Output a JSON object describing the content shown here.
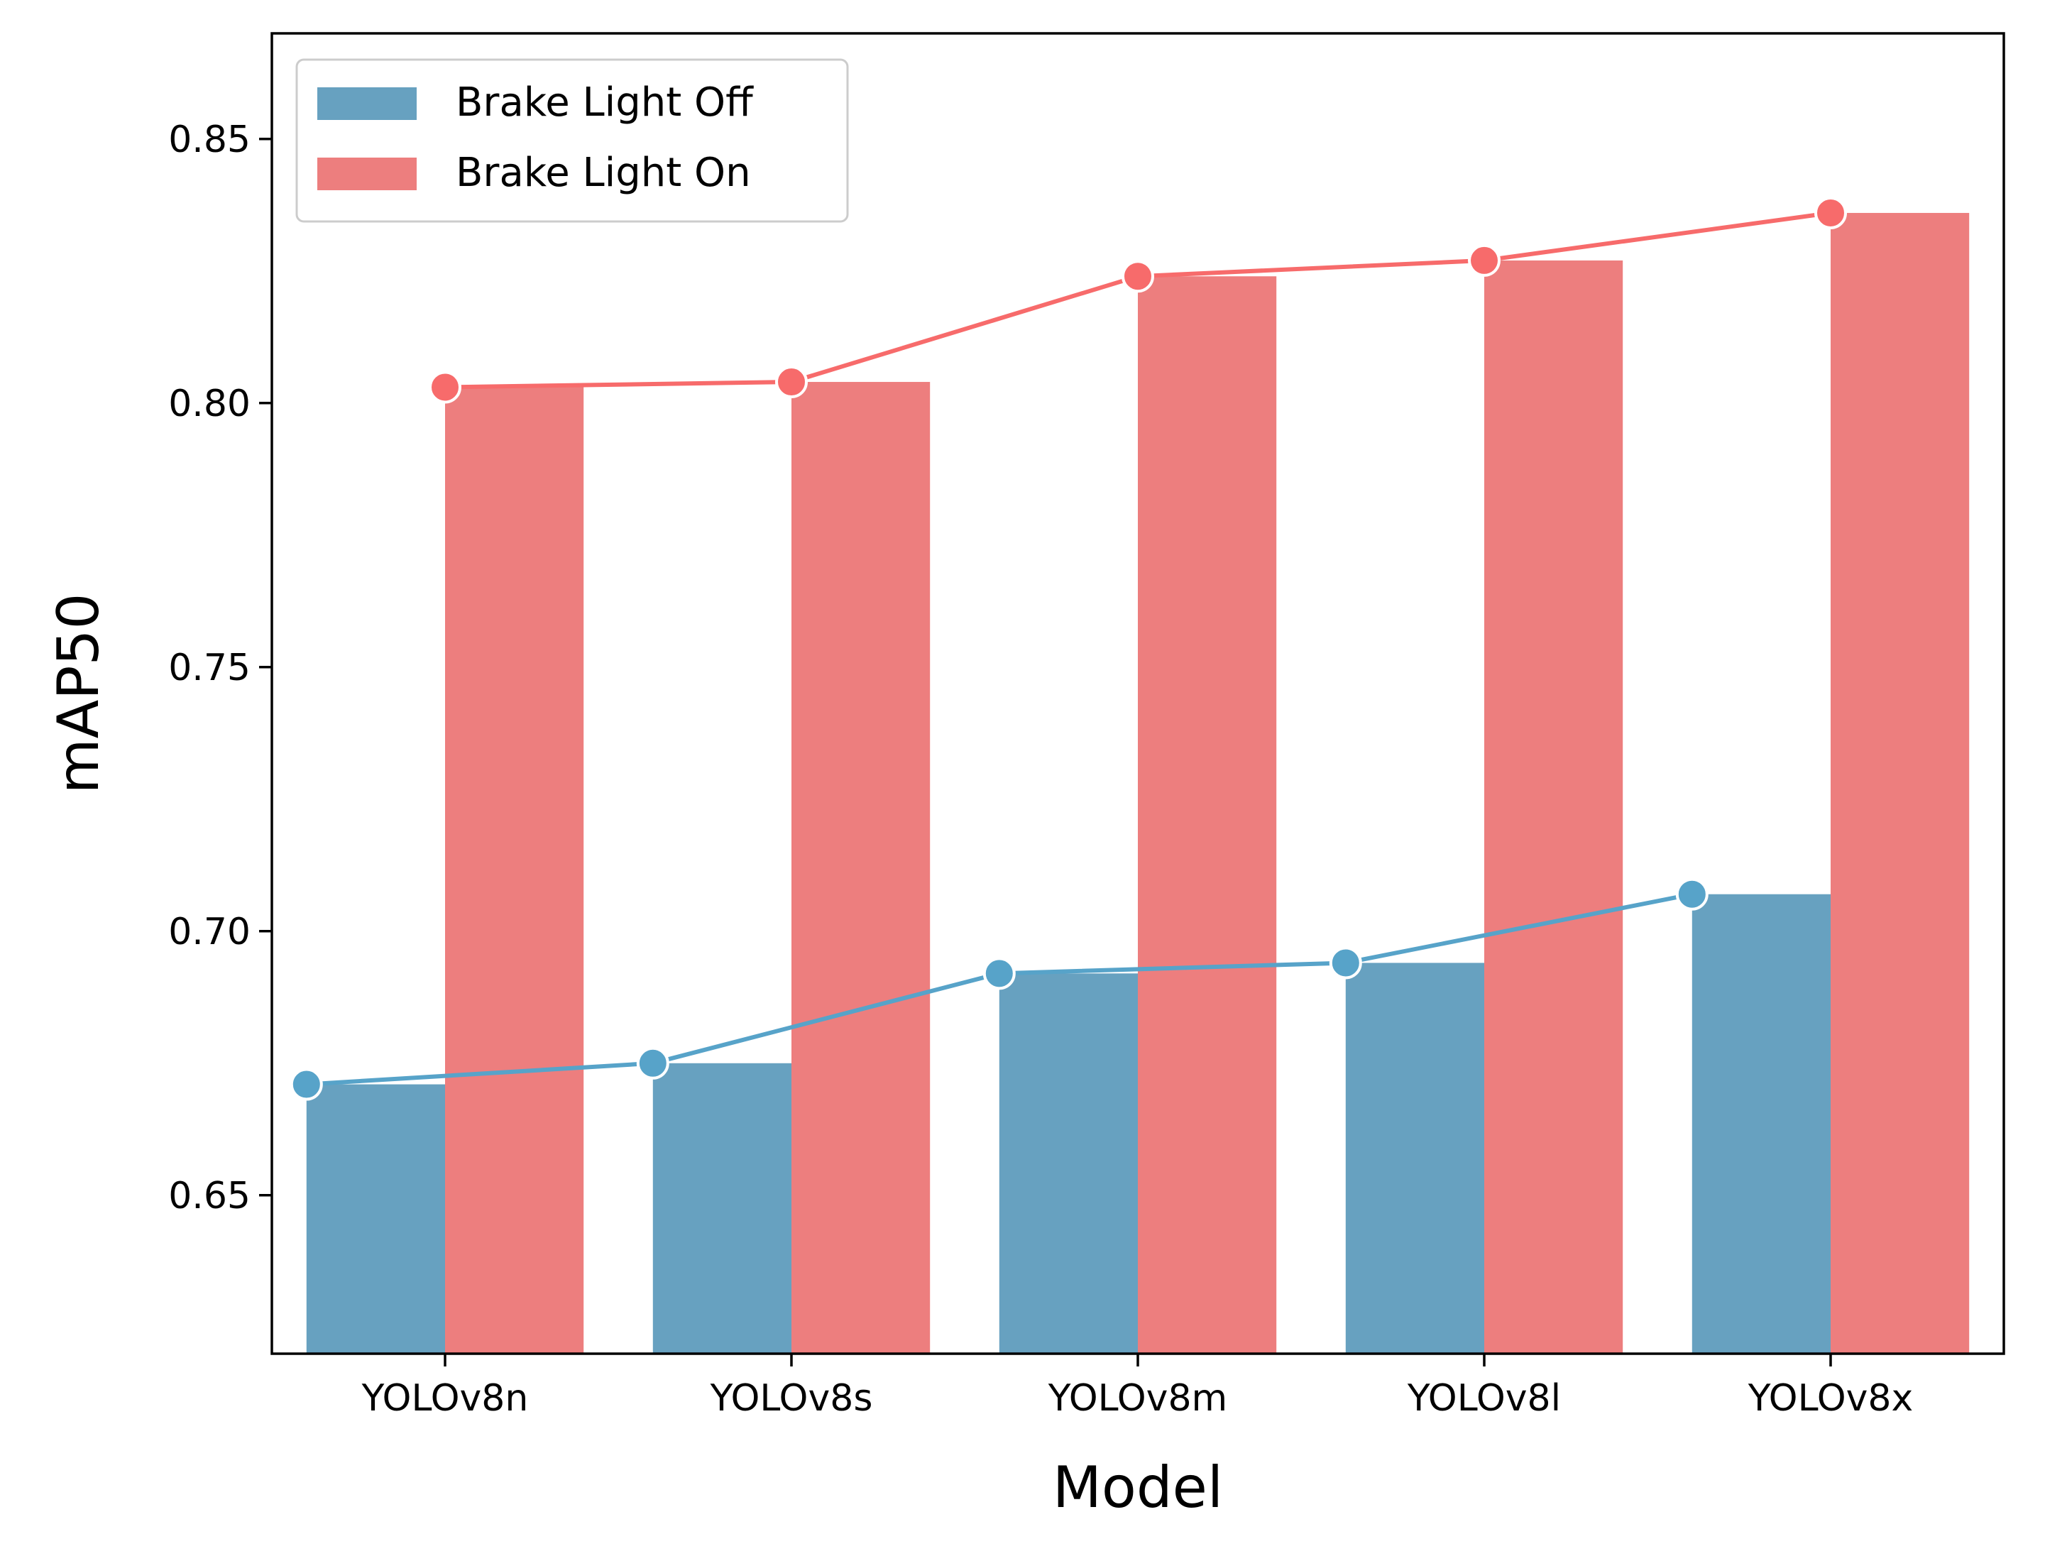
{
  "chart_data": {
    "type": "bar",
    "categories": [
      "YOLOv8n",
      "YOLOv8s",
      "YOLOv8m",
      "YOLOv8l",
      "YOLOv8x"
    ],
    "series": [
      {
        "name": "Brake Light Off",
        "values": [
          0.671,
          0.675,
          0.692,
          0.694,
          0.707
        ],
        "color": "#67a1c0",
        "line_color": "#57a3c9"
      },
      {
        "name": "Brake Light On",
        "values": [
          0.803,
          0.804,
          0.824,
          0.827,
          0.836
        ],
        "color": "#ed7e7e",
        "line_color": "#f76b6b"
      }
    ],
    "overlay": "line-with-markers",
    "xlabel": "Model",
    "ylabel": "mAP50",
    "ylim": [
      0.62,
      0.87
    ],
    "yticks": [
      "0.65",
      "0.70",
      "0.75",
      "0.80",
      "0.85"
    ],
    "grid": false,
    "legend_position": "top-left"
  }
}
